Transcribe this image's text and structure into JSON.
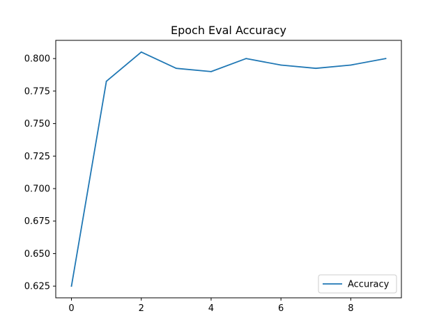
{
  "chart_data": {
    "type": "line",
    "title": "Epoch Eval Accuracy",
    "xlabel": "",
    "ylabel": "",
    "x": [
      0,
      1,
      2,
      3,
      4,
      5,
      6,
      7,
      8,
      9
    ],
    "series": [
      {
        "name": "Accuracy",
        "values": [
          0.625,
          0.7825,
          0.805,
          0.7925,
          0.79,
          0.8,
          0.795,
          0.7925,
          0.795,
          0.8
        ],
        "color": "#1f77b4"
      }
    ],
    "xlim": [
      -0.45,
      9.45
    ],
    "ylim": [
      0.616,
      0.814
    ],
    "xticks": [
      0,
      2,
      4,
      6,
      8
    ],
    "xtick_labels": [
      "0",
      "2",
      "4",
      "6",
      "8"
    ],
    "yticks": [
      0.625,
      0.65,
      0.675,
      0.7,
      0.725,
      0.75,
      0.775,
      0.8
    ],
    "ytick_labels": [
      "0.625",
      "0.650",
      "0.675",
      "0.700",
      "0.725",
      "0.750",
      "0.775",
      "0.800"
    ],
    "grid": false,
    "legend": "lower right"
  }
}
